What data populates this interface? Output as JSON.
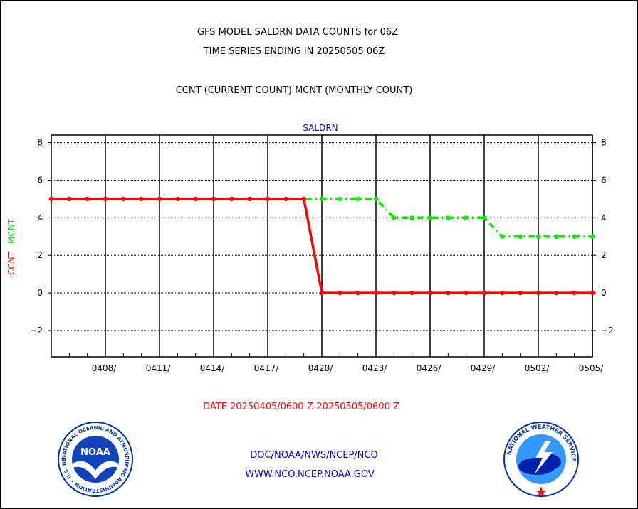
{
  "header": {
    "title_line1": "GFS MODEL SALDRN DATA COUNTS for 06Z",
    "title_line2": "TIME SERIES ENDING IN 20250505 06Z",
    "subtitle": "CCNT (CURRENT COUNT) MCNT (MONTHLY COUNT)"
  },
  "footer": {
    "date_range": "DATE 20250405/0600 Z-20250505/0600 Z",
    "org_line": "DOC/NOAA/NWS/NCEP/NCO",
    "url_line": "WWW.NCO.NCEP.NOAA.GOV",
    "noaa_logo_text": "NOAA",
    "noaa_logo_ring_text": "NATIONAL OCEANIC AND ATMOSPHERIC ADMINISTRATION • U.S. DEPARTMENT OF COMMERCE",
    "nws_logo_ring_text": "NATIONAL WEATHER SERVICE"
  },
  "colors": {
    "ccnt": "#ff0000",
    "mcnt": "#00ee00",
    "title": "#000000",
    "blue_text": "#0000cc",
    "date_text": "#ff0000"
  },
  "chart_data": {
    "type": "line",
    "title": "SALDRN",
    "ylabel_ccnt": "CCNT",
    "ylabel_mcnt": "MCNT",
    "ylim": [
      -3.4,
      8.4
    ],
    "yticks": [
      -2,
      0,
      2,
      4,
      6,
      8
    ],
    "ytick_labels": [
      "−2",
      "0",
      "2",
      "4",
      "6",
      "8"
    ],
    "xlim": [
      "2025-04-05T06:00Z",
      "2025-05-05T06:00Z"
    ],
    "xtick_labels": [
      "0408/",
      "0411/",
      "0414/",
      "0417/",
      "0420/",
      "0423/",
      "0426/",
      "0429/",
      "0502/",
      "0505/"
    ],
    "xtick_dates": [
      "2025-04-08",
      "2025-04-11",
      "2025-04-14",
      "2025-04-17",
      "2025-04-20",
      "2025-04-23",
      "2025-04-26",
      "2025-04-29",
      "2025-05-02",
      "2025-05-05"
    ],
    "grid": true,
    "series": [
      {
        "name": "CCNT",
        "x": [
          "2025-04-05",
          "2025-04-06",
          "2025-04-07",
          "2025-04-08",
          "2025-04-09",
          "2025-04-10",
          "2025-04-11",
          "2025-04-12",
          "2025-04-13",
          "2025-04-14",
          "2025-04-15",
          "2025-04-16",
          "2025-04-17",
          "2025-04-18",
          "2025-04-19",
          "2025-04-20",
          "2025-04-21",
          "2025-04-22",
          "2025-04-23",
          "2025-04-24",
          "2025-04-25",
          "2025-04-26",
          "2025-04-27",
          "2025-04-28",
          "2025-04-29",
          "2025-04-30",
          "2025-05-01",
          "2025-05-02",
          "2025-05-03",
          "2025-05-04",
          "2025-05-05"
        ],
        "values": [
          5,
          5,
          5,
          5,
          5,
          5,
          5,
          5,
          5,
          5,
          5,
          5,
          5,
          5,
          5,
          0,
          0,
          0,
          0,
          0,
          0,
          0,
          0,
          0,
          0,
          0,
          0,
          0,
          0,
          0,
          0
        ]
      },
      {
        "name": "MCNT",
        "x": [
          "2025-04-05",
          "2025-04-06",
          "2025-04-07",
          "2025-04-08",
          "2025-04-09",
          "2025-04-10",
          "2025-04-11",
          "2025-04-12",
          "2025-04-13",
          "2025-04-14",
          "2025-04-15",
          "2025-04-16",
          "2025-04-17",
          "2025-04-18",
          "2025-04-19",
          "2025-04-20",
          "2025-04-21",
          "2025-04-22",
          "2025-04-23",
          "2025-04-24",
          "2025-04-25",
          "2025-04-26",
          "2025-04-27",
          "2025-04-28",
          "2025-04-29",
          "2025-04-30",
          "2025-05-01",
          "2025-05-02",
          "2025-05-03",
          "2025-05-04",
          "2025-05-05"
        ],
        "values": [
          5,
          5,
          5,
          5,
          5,
          5,
          5,
          5,
          5,
          5,
          5,
          5,
          5,
          5,
          5,
          5,
          5,
          5,
          5,
          4,
          4,
          4,
          4,
          4,
          4,
          3,
          3,
          3,
          3,
          3,
          3
        ]
      }
    ]
  }
}
